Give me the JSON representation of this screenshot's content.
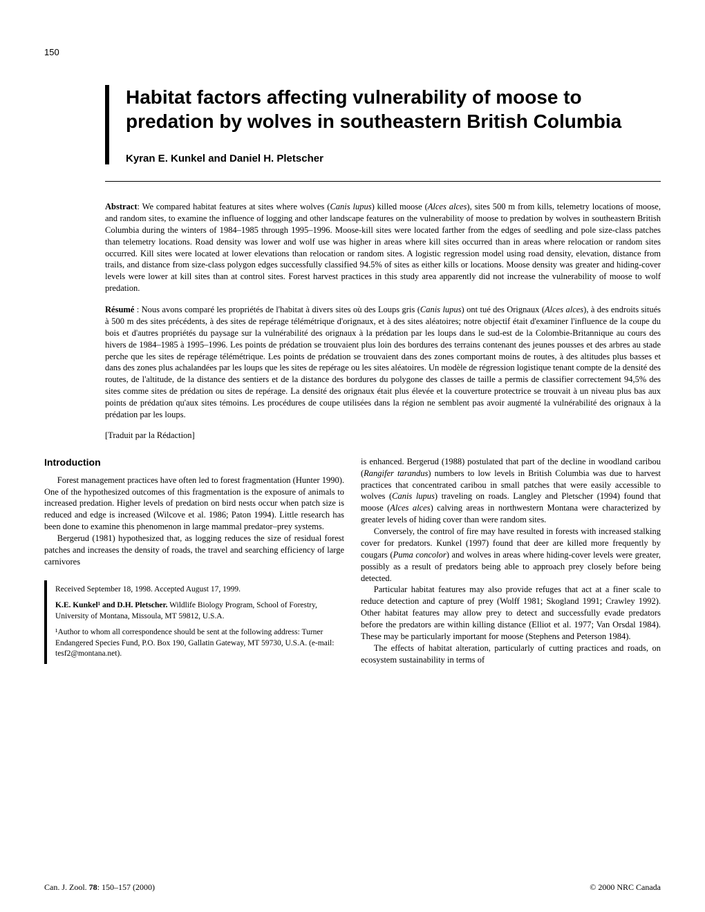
{
  "page_number": "150",
  "title": "Habitat factors affecting vulnerability of moose to predation by wolves in southeastern British Columbia",
  "authors": "Kyran E. Kunkel and Daniel H. Pletscher",
  "abstract": {
    "label": "Abstract",
    "text_pre": ": We compared habitat features at sites where wolves (",
    "sp1": "Canis lupus",
    "text_1": ") killed moose (",
    "sp2": "Alces alces",
    "text_2": "), sites 500 m from kills, telemetry locations of moose, and random sites, to examine the influence of logging and other landscape features on the vulnerability of moose to predation by wolves in southeastern British Columbia during the winters of 1984–1985 through 1995–1996. Moose-kill sites were located farther from the edges of seedling and pole size-class patches than telemetry locations. Road density was lower and wolf use was higher in areas where kill sites occurred than in areas where relocation or random sites occurred. Kill sites were located at lower elevations than relocation or random sites. A logistic regression model using road density, elevation, distance from trails, and distance from size-class polygon edges successfully classified 94.5% of sites as either kills or locations. Moose density was greater and hiding-cover levels were lower at kill sites than at control sites. Forest harvest practices in this study area apparently did not increase the vulnerability of moose to wolf predation."
  },
  "resume": {
    "label": "Résumé",
    "text_pre": " : Nous avons comparé les propriétés de l'habitat à divers sites où des Loups gris (",
    "sp1": "Canis lupus",
    "text_1": ") ont tué des Orignaux (",
    "sp2": "Alces alces",
    "text_2": "), à des endroits situés à 500 m des sites précédents, à des sites de repérage télémétrique d'orignaux, et à des sites aléatoires; notre objectif était d'examiner l'influence de la coupe du bois et d'autres propriétés du paysage sur la vulnérabilité des orignaux à la prédation par les loups dans le sud-est de la Colombie-Britannique au cours des hivers de 1984–1985 à 1995–1996. Les points de prédation se trouvaient plus loin des bordures des terrains contenant des jeunes pousses et des arbres au stade perche que les sites de repérage télémétrique. Les points de prédation se trouvaient dans des zones comportant moins de routes, à des altitudes plus basses et dans des zones plus achalandées par les loups que les sites de repérage ou les sites aléatoires. Un modèle de régression logistique tenant compte de la densité des routes, de l'altitude, de la distance des sentiers et de la distance des bordures du polygone des classes de taille a permis de classifier correctement 94,5% des sites comme sites de prédation ou sites de repérage. La densité des orignaux était plus élevée et la couverture protectrice se trouvait à un niveau plus bas aux points de prédation qu'aux sites témoins. Les procédures de coupe utilisées dans la région ne semblent pas avoir augmenté la vulnérabilité des orignaux à la prédation par les loups."
  },
  "translated": "[Traduit par la Rédaction]",
  "intro_heading": "Introduction",
  "col1": {
    "p1": "Forest management practices have often led to forest fragmentation (Hunter 1990). One of the hypothesized outcomes of this fragmentation is the exposure of animals to increased predation. Higher levels of predation on bird nests occur when patch size is reduced and edge is increased (Wilcove et al. 1986; Paton 1994). Little research has been done to examine this phenomenon in large mammal predator–prey systems.",
    "p2": "Bergerud (1981) hypothesized that, as logging reduces the size of residual forest patches and increases the density of roads, the travel and searching efficiency of large carnivores"
  },
  "author_box": {
    "received": "Received September 18, 1998. Accepted August 17, 1999.",
    "names": "K.E. Kunkel¹ and D.H. Pletscher.",
    "affil": " Wildlife Biology Program, School of Forestry, University of Montana, Missoula, MT 59812, U.S.A.",
    "corr": "¹Author to whom all correspondence should be sent at the following address: Turner Endangered Species Fund, P.O. Box 190, Gallatin Gateway, MT 59730, U.S.A. (e-mail: tesf2@montana.net)."
  },
  "col2": {
    "p1_a": "is enhanced. Bergerud (1988) postulated that part of the decline in woodland caribou (",
    "p1_sp": "Rangifer tarandus",
    "p1_b": ") numbers to low levels in British Columbia was due to harvest practices that concentrated caribou in small patches that were easily accessible to wolves (",
    "p1_sp2": "Canis lupus",
    "p1_c": ") traveling on roads. Langley and Pletscher (1994) found that moose (",
    "p1_sp3": "Alces alces",
    "p1_d": ") calving areas in northwestern Montana were characterized by greater levels of hiding cover than were random sites.",
    "p2_a": "Conversely, the control of fire may have resulted in forests with increased stalking cover for predators. Kunkel (1997) found that deer are killed more frequently by cougars (",
    "p2_sp": "Puma concolor",
    "p2_b": ") and wolves in areas where hiding-cover levels were greater, possibly as a result of predators being able to approach prey closely before being detected.",
    "p3": "Particular habitat features may also provide refuges that act at a finer scale to reduce detection and capture of prey (Wolff 1981; Skogland 1991; Crawley 1992). Other habitat features may allow prey to detect and successfully evade predators before the predators are within killing distance (Elliot et al. 1977; Van Orsdal 1984). These may be particularly important for moose (Stephens and Peterson 1984).",
    "p4": "The effects of habitat alteration, particularly of cutting practices and roads, on ecosystem sustainability in terms of"
  },
  "footer": {
    "left_a": "Can. J. Zool. ",
    "left_b": "78",
    "left_c": ": 150–157 (2000)",
    "right": "© 2000 NRC Canada"
  }
}
